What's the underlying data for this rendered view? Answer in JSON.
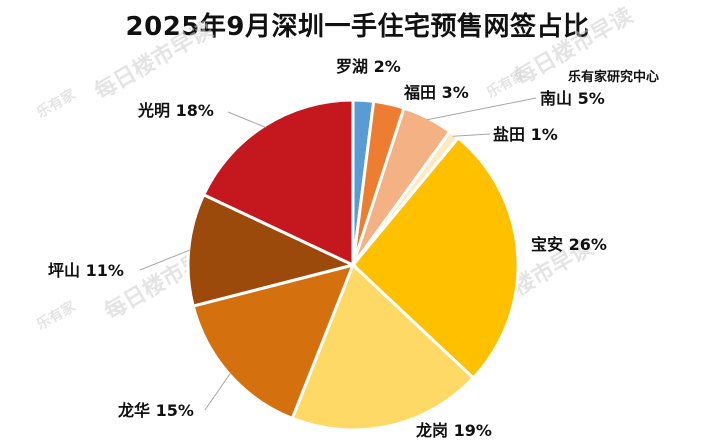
{
  "title": "2025年9月深圳一手住宅预售网签占比",
  "source_note": "乐有家研究中心",
  "watermark": {
    "brand": "乐有家",
    "slogan": "每日楼市早读"
  },
  "chart_data": {
    "type": "pie",
    "title": "2025年9月深圳一手住宅预售网签占比",
    "unit": "%",
    "legend": "none",
    "slices": [
      {
        "label": "罗湖",
        "value": 2,
        "color": "#5b9bd5"
      },
      {
        "label": "福田",
        "value": 3,
        "color": "#ed7d31"
      },
      {
        "label": "南山",
        "value": 5,
        "color": "#f4b183"
      },
      {
        "label": "盐田",
        "value": 1,
        "color": "#fde9c4"
      },
      {
        "label": "宝安",
        "value": 26,
        "color": "#ffc000"
      },
      {
        "label": "龙岗",
        "value": 19,
        "color": "#ffd966"
      },
      {
        "label": "龙华",
        "value": 15,
        "color": "#d4700d"
      },
      {
        "label": "坪山",
        "value": 11,
        "color": "#9c4a0c"
      },
      {
        "label": "光明",
        "value": 18,
        "color": "#c5171e"
      }
    ]
  }
}
